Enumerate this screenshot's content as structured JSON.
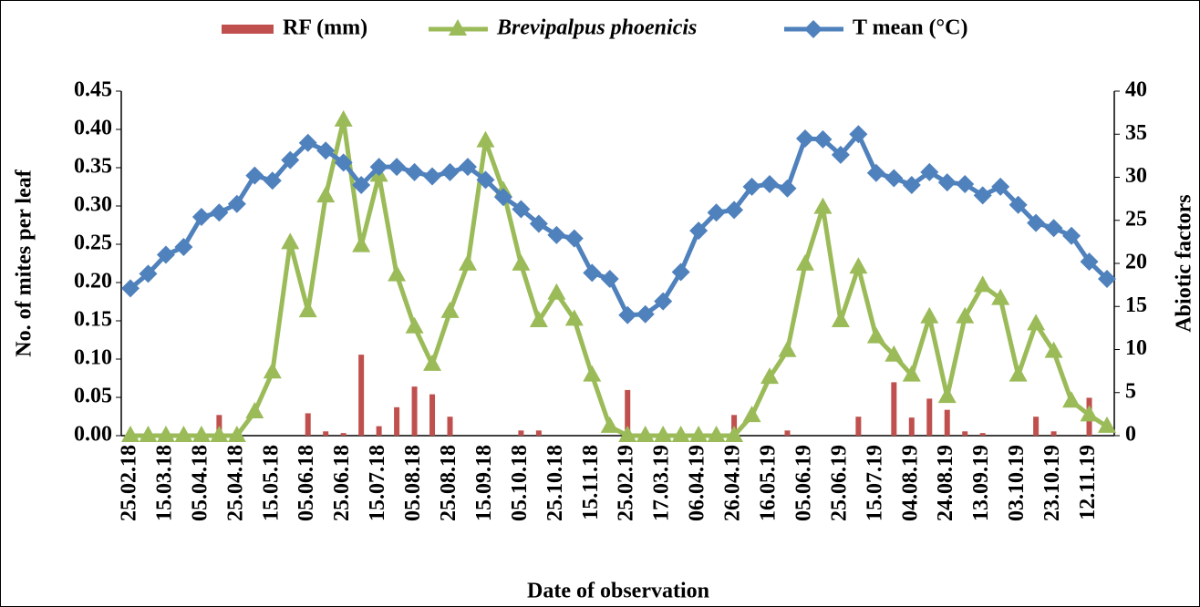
{
  "chart_data": {
    "type": "bar-line",
    "y_label": "No. of mites per leaf",
    "y2_label": "Abiotic factors",
    "x_label": "Date of observation",
    "categories": [
      "25.02.18",
      null,
      "15.03.18",
      null,
      "05.04.18",
      null,
      "25.04.18",
      null,
      "15.05.18",
      null,
      "05.06.18",
      null,
      "25.06.18",
      null,
      "15.07.18",
      null,
      "05.08.18",
      null,
      "25.08.18",
      null,
      "15.09.18",
      null,
      "05.10.18",
      null,
      "25.10.18",
      null,
      "15.11.18",
      null,
      "25.02.19",
      null,
      "17.03.19",
      null,
      "06.04.19",
      null,
      "26.04.19",
      null,
      "16.05.19",
      null,
      "05.06.19",
      null,
      "25.06.19",
      null,
      "15.07.19",
      null,
      "04.08.19",
      null,
      "24.08.19",
      null,
      "13.09.19",
      null,
      "03.10.19",
      null,
      "23.10.19",
      null,
      "12.11.19",
      null
    ],
    "series": [
      {
        "name": "RF (mm)",
        "type": "bar",
        "axis": "y2",
        "color": "#c0504d",
        "values": [
          0,
          0,
          0,
          0,
          0,
          2.4,
          0,
          0,
          0,
          0,
          2.6,
          0.5,
          0.3,
          9.4,
          1.1,
          3.3,
          5.7,
          4.8,
          2.2,
          0,
          0,
          0,
          0.6,
          0.6,
          0,
          0,
          0,
          0,
          5.3,
          0,
          0,
          0,
          0,
          0,
          2.4,
          0,
          0,
          0.6,
          0,
          0,
          0,
          2.2,
          0,
          6.2,
          2.1,
          4.3,
          3.0,
          0.5,
          0.3,
          0,
          0,
          2.2,
          0.5,
          0,
          4.4,
          0
        ]
      },
      {
        "name": "Brevipalpus phoenicis",
        "type": "line",
        "marker": "triangle",
        "axis": "y",
        "color": "#9bbb59",
        "values": [
          0,
          0,
          0,
          0,
          0,
          0,
          0,
          0.031,
          0.083,
          0.252,
          0.163,
          0.313,
          0.412,
          0.248,
          0.34,
          0.21,
          0.142,
          0.093,
          0.162,
          0.224,
          0.385,
          0.32,
          0.224,
          0.15,
          0.186,
          0.152,
          0.079,
          0.012,
          0,
          0,
          0,
          0,
          0,
          0,
          0,
          0.026,
          0.076,
          0.111,
          0.224,
          0.298,
          0.15,
          0.22,
          0.129,
          0.105,
          0.079,
          0.155,
          0.051,
          0.155,
          0.196,
          0.179,
          0.079,
          0.146,
          0.11,
          0.045,
          0.027,
          0.012
        ]
      },
      {
        "name": "T mean (°C)",
        "type": "line",
        "marker": "diamond",
        "axis": "y2",
        "color": "#4f81bd",
        "values": [
          17.1,
          18.8,
          21,
          21.9,
          25.4,
          25.9,
          26.9,
          30.2,
          29.6,
          32,
          34,
          33.1,
          31.7,
          29.1,
          31.2,
          31.2,
          30.6,
          30.1,
          30.6,
          31.2,
          29.7,
          27.7,
          26.3,
          24.6,
          23.3,
          22.9,
          18.9,
          18.2,
          14,
          14.1,
          15.6,
          19,
          23.8,
          25.9,
          26.2,
          28.9,
          29.2,
          28.7,
          34.5,
          34.4,
          32.6,
          35,
          30.5,
          29.9,
          29.1,
          30.6,
          29.4,
          29.2,
          27.9,
          28.9,
          26.8,
          24.7,
          24.1,
          23.2,
          20.2,
          18.2
        ]
      }
    ],
    "ylim": [
      0,
      0.45
    ],
    "yticks": [
      {
        "value": 0,
        "label": "0.00"
      },
      0.05,
      {
        "value": 0.1,
        "label": "0.10"
      },
      0.15,
      {
        "value": 0.2,
        "label": "0.20"
      },
      0.25,
      {
        "value": 0.3,
        "label": "0.30"
      },
      0.35,
      {
        "value": 0.4,
        "label": "0.40"
      },
      0.45
    ],
    "y2lim": [
      0,
      40
    ],
    "y2ticks": [
      0,
      5,
      10,
      15,
      20,
      25,
      30,
      35,
      40
    ],
    "legend": "top"
  }
}
